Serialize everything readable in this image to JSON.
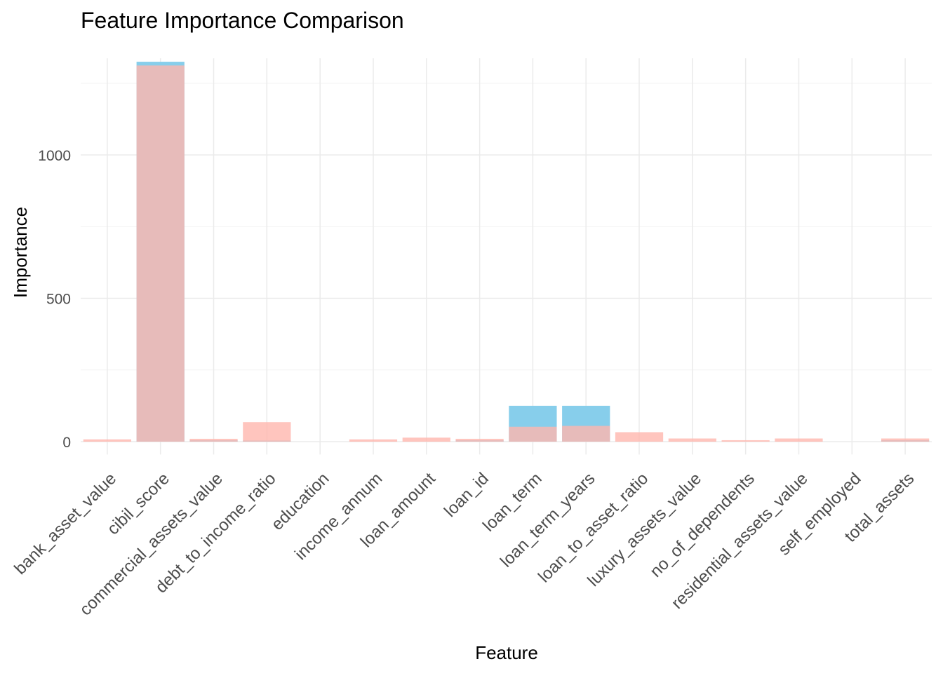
{
  "chart_data": {
    "type": "bar",
    "title": "Feature Importance Comparison",
    "xlabel": "Feature",
    "ylabel": "Importance",
    "ylim": [
      -45,
      1325
    ],
    "yticks": [
      0,
      500,
      1000
    ],
    "yticks_labels": [
      "0",
      "500",
      "1000"
    ],
    "grid": true,
    "overlay": true,
    "categories": [
      "bank_asset_value",
      "cibil_score",
      "commercial_assets_value",
      "debt_to_income_ratio",
      "education",
      "income_annum",
      "loan_amount",
      "loan_id",
      "loan_term",
      "loan_term_years",
      "loan_to_asset_ratio",
      "luxury_assets_value",
      "no_of_dependents",
      "residential_assets_value",
      "self_employed",
      "total_assets"
    ],
    "series": [
      {
        "color": "#87CEEB",
        "values": [
          0,
          1325,
          5,
          4,
          0,
          0,
          0,
          5,
          125,
          125,
          0,
          0,
          0,
          0,
          0,
          5
        ]
      },
      {
        "color": "#FFB6AE",
        "values": [
          8,
          1312,
          10,
          68,
          0,
          8,
          14,
          10,
          52,
          55,
          33,
          11,
          5,
          11,
          0,
          11
        ]
      }
    ]
  }
}
